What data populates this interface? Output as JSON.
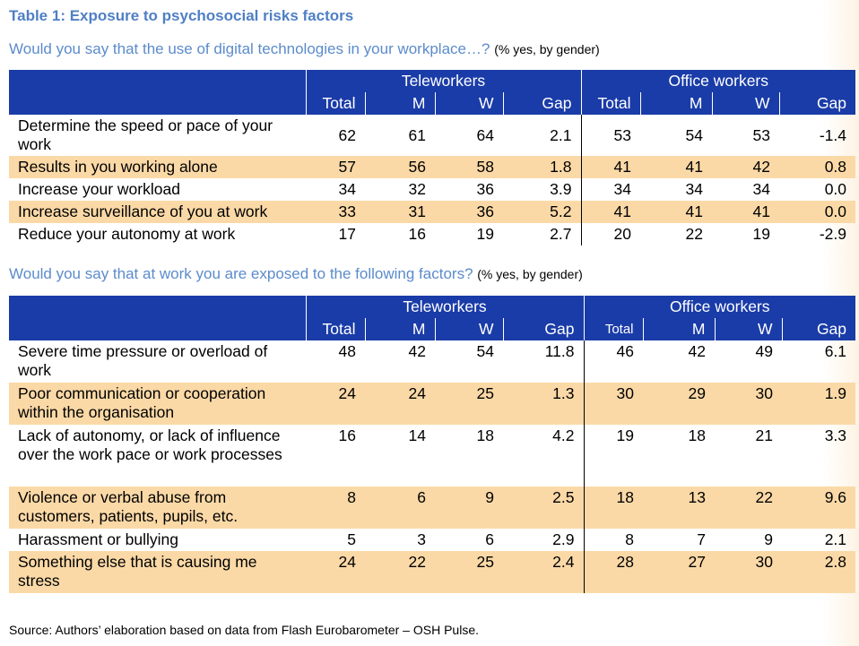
{
  "title": "Table 1: Exposure to psychosocial risks factors",
  "table1": {
    "question": "Would you say that the use of digital technologies in your workplace…?",
    "note": "(% yes, by gender)",
    "group_labels": [
      "Teleworkers",
      "Office workers"
    ],
    "columns": [
      "Total",
      "M",
      "W",
      "Gap",
      "Total",
      "M",
      "W",
      "Gap"
    ],
    "rows": [
      {
        "label": "Determine the speed or pace of your work",
        "values": [
          "62",
          "61",
          "64",
          "2.1",
          "53",
          "54",
          "53",
          "-1.4"
        ]
      },
      {
        "label": "Results in you working alone",
        "values": [
          "57",
          "56",
          "58",
          "1.8",
          "41",
          "41",
          "42",
          "0.8"
        ]
      },
      {
        "label": "Increase your workload",
        "values": [
          "34",
          "32",
          "36",
          "3.9",
          "34",
          "34",
          "34",
          "0.0"
        ]
      },
      {
        "label": "Increase surveillance of you at work",
        "values": [
          "33",
          "31",
          "36",
          "5.2",
          "41",
          "41",
          "41",
          "0.0"
        ]
      },
      {
        "label": "Reduce your autonomy at work",
        "values": [
          "17",
          "16",
          "19",
          "2.7",
          "20",
          "22",
          "19",
          "-2.9"
        ]
      }
    ]
  },
  "table2": {
    "question": "Would you say that at work you are exposed to the following factors?",
    "note": "(% yes, by gender)",
    "group_labels": [
      "Teleworkers",
      "Office workers"
    ],
    "columns": [
      "Total",
      "M",
      "W",
      "Gap",
      "Total",
      "M",
      "W",
      "Gap"
    ],
    "rows": [
      {
        "label": "Severe time pressure or overload of work",
        "values": [
          "48",
          "42",
          "54",
          "11.8",
          "46",
          "42",
          "49",
          "6.1"
        ]
      },
      {
        "label": "Poor communication or cooperation within the organisation",
        "values": [
          "24",
          "24",
          "25",
          "1.3",
          "30",
          "29",
          "30",
          "1.9"
        ]
      },
      {
        "label": "Lack of autonomy, or lack of influence over the work pace or work processes",
        "values": [
          "16",
          "14",
          "18",
          "4.2",
          "19",
          "18",
          "21",
          "3.3"
        ]
      },
      {
        "label": "Violence or verbal abuse from customers, patients, pupils, etc.",
        "values": [
          "8",
          "6",
          "9",
          "2.5",
          "18",
          "13",
          "22",
          "9.6"
        ]
      },
      {
        "label": "Harassment or bullying",
        "values": [
          "5",
          "3",
          "6",
          "2.9",
          "8",
          "7",
          "9",
          "2.1"
        ]
      },
      {
        "label": "Something else that is causing me stress",
        "values": [
          "24",
          "22",
          "25",
          "2.4",
          "28",
          "27",
          "30",
          "2.8"
        ]
      }
    ]
  },
  "source": "Source: Authors’ elaboration based on data from Flash Eurobarometer – OSH Pulse.",
  "colors": {
    "header_bg": "#1a3ca8",
    "shade_row": "#fbd9a7",
    "title_text": "#4f7fc4",
    "question_text": "#5b8bcb"
  }
}
